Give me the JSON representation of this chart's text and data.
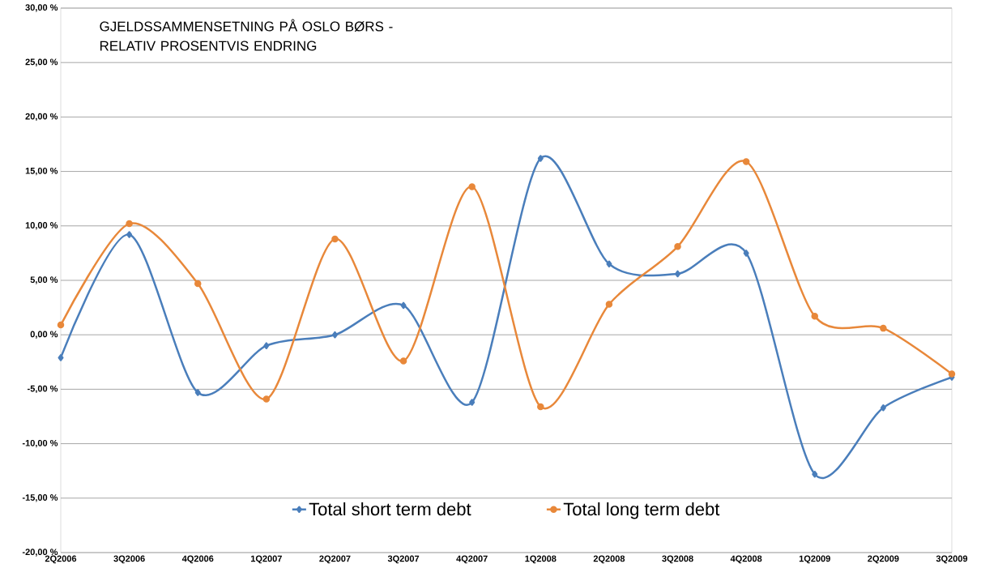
{
  "chart_data": {
    "type": "line",
    "title": "GJELDSSAMMENSETNING PÅ OSLO BØRS - RELATIV PROSENTVIS ENDRING",
    "categories": [
      "2Q2006",
      "3Q2006",
      "4Q2006",
      "1Q2007",
      "2Q2007",
      "3Q2007",
      "4Q2007",
      "1Q2008",
      "2Q2008",
      "3Q2008",
      "4Q2008",
      "1Q2009",
      "2Q2009",
      "3Q2009"
    ],
    "series": [
      {
        "name": "Total short term debt",
        "color": "#4a7ebb",
        "marker": "diamond",
        "values": [
          -2.1,
          9.2,
          -5.3,
          -1.0,
          0.0,
          2.7,
          -6.2,
          16.2,
          6.5,
          5.6,
          7.5,
          -12.8,
          -6.7,
          -3.9
        ]
      },
      {
        "name": "Total long term debt",
        "color": "#e8883a",
        "marker": "circle",
        "values": [
          0.9,
          10.2,
          4.7,
          -5.9,
          8.8,
          -2.4,
          13.6,
          -6.6,
          2.8,
          8.1,
          15.9,
          1.7,
          0.6,
          -3.6
        ]
      }
    ],
    "ylim": [
      -20,
      30
    ],
    "yticks": [
      {
        "value": -20,
        "label": "-20,00 %"
      },
      {
        "value": -15,
        "label": "-15,00 %"
      },
      {
        "value": -10,
        "label": "-10,00 %"
      },
      {
        "value": -5,
        "label": "-5,00 %"
      },
      {
        "value": 0,
        "label": "0,00 %"
      },
      {
        "value": 5,
        "label": "5,00 %"
      },
      {
        "value": 10,
        "label": "10,00 %"
      },
      {
        "value": 15,
        "label": "15,00 %"
      },
      {
        "value": 20,
        "label": "20,00 %"
      },
      {
        "value": 25,
        "label": "25,00 %"
      },
      {
        "value": 30,
        "label": "30,00 %"
      }
    ],
    "grid": "y",
    "legend": "bottom",
    "line_style": "solid"
  }
}
